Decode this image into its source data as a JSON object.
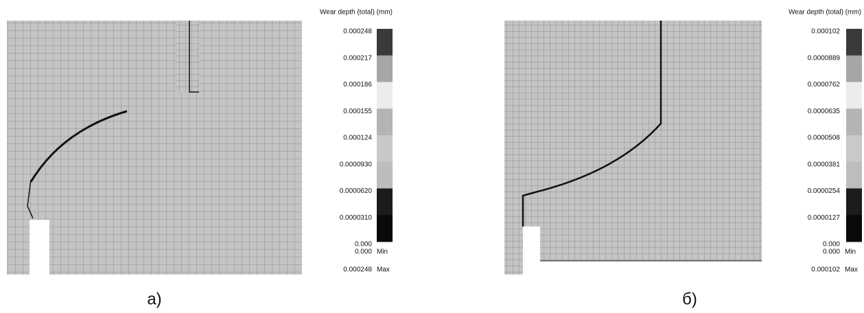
{
  "panels": [
    {
      "legend": {
        "title": "Wear depth (total) (mm)",
        "ticks": [
          "0.000248",
          "0.000217",
          "0.000186",
          "0.000155",
          "0.000124",
          "0.0000930",
          "0.0000620",
          "0.0000310",
          "0.000"
        ],
        "colors": [
          "#3a3a3a",
          "#a6a6a6",
          "#ececec",
          "#b4b4b4",
          "#c9c9c9",
          "#bdbdbd",
          "#1c1c1c",
          "#0a0a0a"
        ],
        "min_value": "0.000",
        "min_label": "Min",
        "max_value": "0.000248",
        "max_label": "Max"
      },
      "caption": "a)"
    },
    {
      "legend": {
        "title": "Wear depth (total) (mm)",
        "ticks": [
          "0.000102",
          "0.0000889",
          "0.0000762",
          "0.0000635",
          "0.0000508",
          "0.0000381",
          "0.0000254",
          "0.0000127",
          "0.000"
        ],
        "colors": [
          "#3a3a3a",
          "#a6a6a6",
          "#ececec",
          "#b4b4b4",
          "#c9c9c9",
          "#bdbdbd",
          "#1c1c1c",
          "#0a0a0a"
        ],
        "min_value": "0.000",
        "min_label": "Min",
        "max_value": "0.000102",
        "max_label": "Max"
      },
      "caption": "б)"
    }
  ]
}
